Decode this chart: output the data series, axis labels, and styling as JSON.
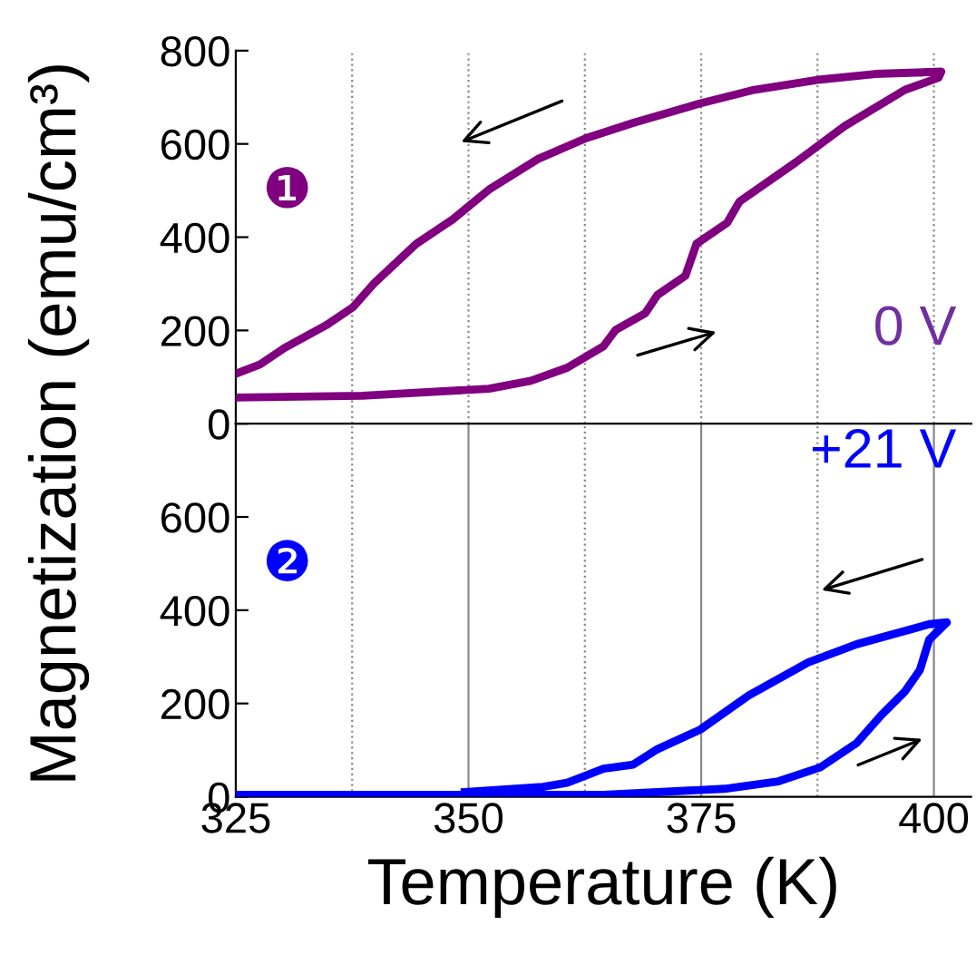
{
  "chart_data": [
    {
      "type": "line",
      "ylabel": "Magnetization (emu/cm³)",
      "annotations": [
        "❶",
        "0 V"
      ],
      "xlim": [
        325,
        404
      ],
      "ylim": [
        0,
        800
      ],
      "yticks": [
        0,
        200,
        400,
        600,
        800
      ],
      "xticks": [
        {
          "value": 325,
          "label": null
        },
        {
          "value": 337.5,
          "label": null
        },
        {
          "value": 350,
          "label": null
        },
        {
          "value": 362.5,
          "label": null
        },
        {
          "value": 375,
          "label": null
        },
        {
          "value": 387.5,
          "label": null
        },
        {
          "value": 400,
          "label": null
        }
      ],
      "tick_labels": "y",
      "grid": "x",
      "marker": "none",
      "line_style": "solid",
      "series": [
        {
          "color": "#800080",
          "x": [
            325,
            338.6,
            352.2,
            356.7,
            360.6,
            364.5,
            365.8,
            369.0,
            370.3,
            373.3,
            374.5,
            377.8,
            379.1,
            385.2,
            390.4,
            396.9,
            400.5,
            400.8,
            393.7,
            387.8,
            380.7,
            374.9,
            367.7,
            362.6,
            357.4,
            352.2,
            348.3,
            344.4,
            339.9,
            337.6,
            334.7,
            330.2,
            327.6,
            325
          ],
          "values": [
            56,
            60,
            75,
            92,
            120,
            166,
            201,
            237,
            276,
            317,
            386,
            431,
            476,
            561,
            638,
            716,
            742,
            755,
            750,
            738,
            716,
            687,
            645,
            612,
            567,
            502,
            438,
            386,
            302,
            250,
            211,
            162,
            127,
            107
          ]
        }
      ]
    },
    {
      "type": "line",
      "xlabel": "Temperature (K)",
      "annotations": [
        "❷",
        "+21 V"
      ],
      "xlim": [
        325,
        404
      ],
      "ylim": [
        0,
        800
      ],
      "yticks": [
        0,
        200,
        400,
        600,
        {
          "value": 800,
          "label": null
        }
      ],
      "xticks": [
        325,
        {
          "value": 337.5,
          "label": null
        },
        350,
        {
          "value": 362.5,
          "label": null
        },
        375,
        {
          "value": 387.5,
          "label": null
        },
        400
      ],
      "grid": "x",
      "marker": "none",
      "line_style": "solid",
      "series": [
        {
          "color": "#0000ff",
          "x": [
            325,
            364.5,
            377.5,
            383.3,
            387.8,
            391.7,
            394.3,
            396.9,
            398.5,
            399.5,
            401.4,
            399.5,
            391.7,
            386.5,
            380.1,
            374.9,
            370.3,
            367.7,
            364.5,
            360.6,
            358.0,
            349.6
          ],
          "values": [
            4,
            4,
            17,
            33,
            63,
            115,
            174,
            226,
            272,
            337,
            374,
            370,
            327,
            288,
            217,
            144,
            102,
            69,
            60,
            30,
            21,
            10
          ]
        }
      ]
    }
  ]
}
